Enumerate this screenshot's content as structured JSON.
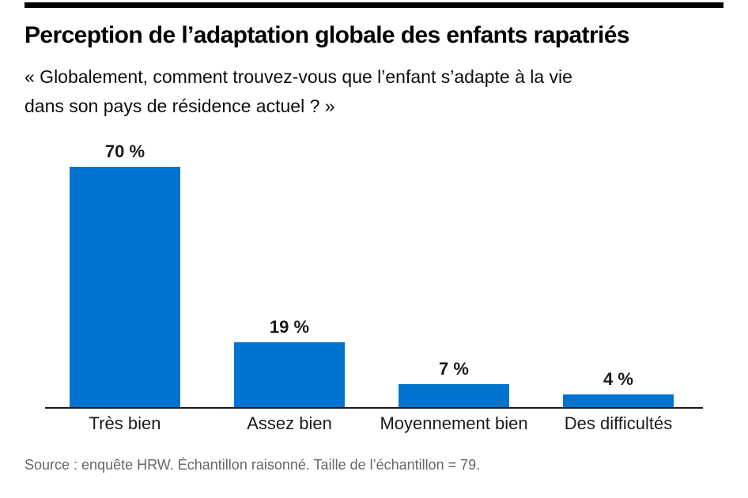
{
  "header": {
    "title": "Perception de l’adaptation globale des enfants rapatriés",
    "subtitle_line1": "« Globalement, comment trouvez-vous que l’enfant s’adapte à la vie",
    "subtitle_line2": "dans son pays de résidence actuel ? »"
  },
  "chart_data": {
    "type": "bar",
    "title": "Perception de l’adaptation globale des enfants rapatriés",
    "subtitle": "« Globalement, comment trouvez-vous que l’enfant s’adapte à la vie dans son pays de résidence actuel ? »",
    "categories": [
      "Très bien",
      "Assez bien",
      "Moyennement bien",
      "Des difficultés"
    ],
    "values": [
      70,
      19,
      7,
      4
    ],
    "value_labels": [
      "70 %",
      "19 %",
      "7 %",
      "4 %"
    ],
    "unit": "%",
    "ylim": [
      0,
      70
    ],
    "grid": "off",
    "legend": "none",
    "bar_color": "#0073CE",
    "axis_color": "#1a1a1a"
  },
  "footer": {
    "source": "Source : enquête HRW. Échantillon raisonné. Taille de l’échantillon = 79."
  },
  "colors": {
    "background": "#ffffff",
    "bar": "#0073CE",
    "top_rule": "#000000",
    "source_text": "#666666"
  }
}
